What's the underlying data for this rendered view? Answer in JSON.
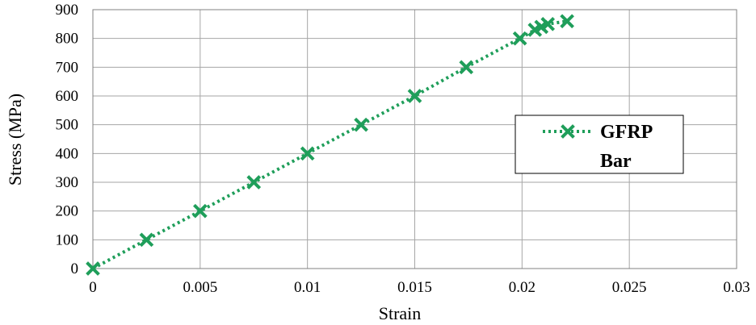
{
  "chart_data": {
    "type": "line",
    "xlabel": "Strain",
    "ylabel": "Stress (MPa)",
    "xlim": [
      0,
      0.03
    ],
    "ylim": [
      0,
      900
    ],
    "x_ticks": [
      "0",
      "0.005",
      "0.01",
      "0.015",
      "0.02",
      "0.025",
      "0.03"
    ],
    "y_ticks": [
      "0",
      "100",
      "200",
      "300",
      "400",
      "500",
      "600",
      "700",
      "800",
      "900"
    ],
    "grid": true,
    "legend": {
      "placement": "right",
      "lines": [
        "GFRP",
        "Bar"
      ]
    },
    "series": [
      {
        "name": "GFRP Bar",
        "color": "#1f9e5a",
        "line_style": "dotted",
        "marker": "x",
        "x": [
          0,
          0.0025,
          0.005,
          0.0075,
          0.01,
          0.0125,
          0.015,
          0.0174,
          0.0199,
          0.0206,
          0.0209,
          0.0212,
          0.0221
        ],
        "y": [
          0,
          100,
          200,
          300,
          400,
          500,
          600,
          700,
          800,
          830,
          840,
          850,
          860
        ]
      }
    ]
  }
}
